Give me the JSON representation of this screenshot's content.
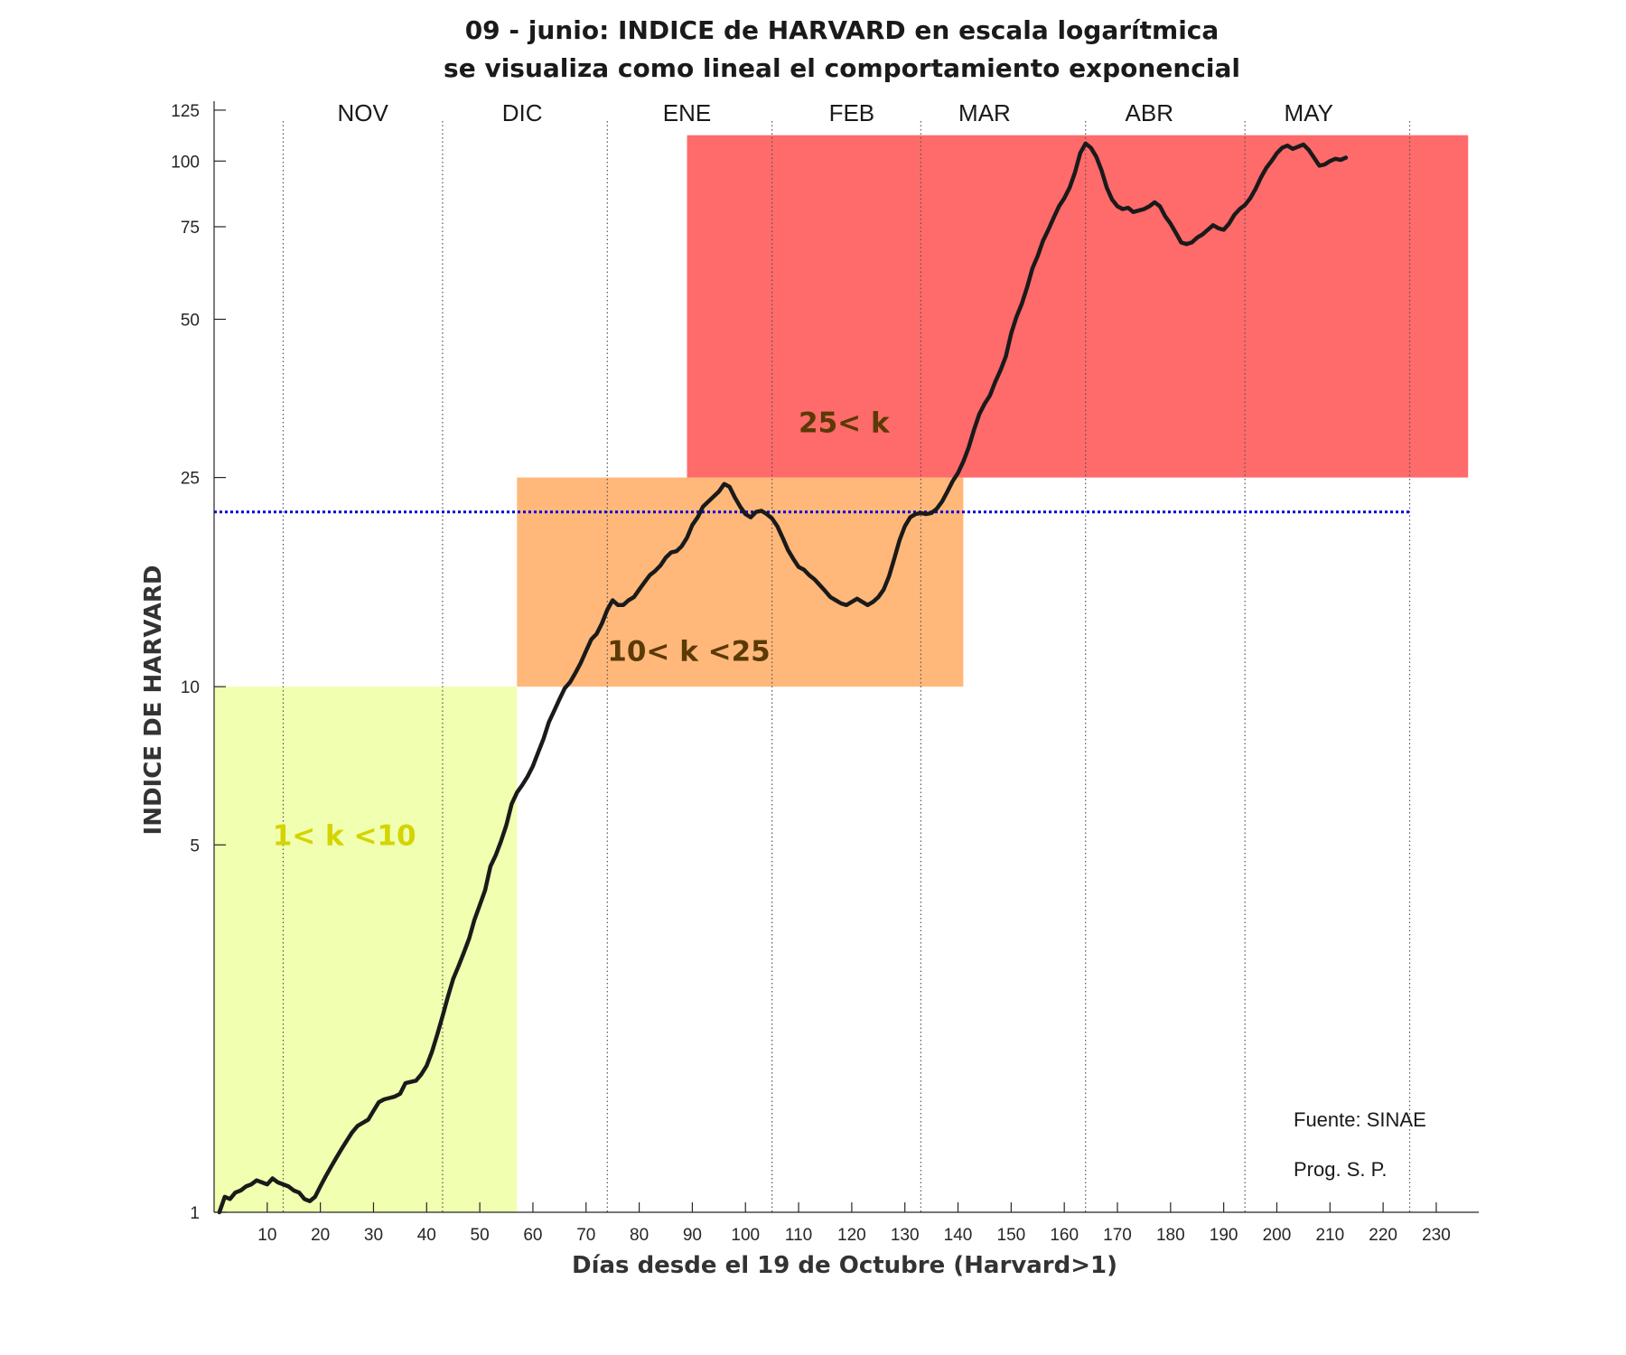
{
  "chart_data": {
    "type": "line",
    "title": "09 - junio:  INDICE de HARVARD  en escala logarítmica",
    "subtitle": "se visualiza como lineal el comportamiento exponencial",
    "xlabel": "Días desde el 19 de Octubre (Harvard>1)",
    "ylabel": "INDICE DE HARVARD",
    "yscale": "log",
    "xlim": [
      0,
      238
    ],
    "ylim": [
      1,
      130
    ],
    "x_ticks": [
      10,
      20,
      30,
      40,
      50,
      60,
      70,
      80,
      90,
      100,
      110,
      120,
      130,
      140,
      150,
      160,
      170,
      180,
      190,
      200,
      210,
      220,
      230
    ],
    "y_ticks": [
      1,
      5,
      10,
      25,
      50,
      75,
      100,
      125
    ],
    "y_tick_labels": [
      "1",
      "5",
      "10",
      "25",
      "50",
      "75",
      "100",
      "125"
    ],
    "grid": false,
    "month_boundaries": [
      13,
      43,
      74,
      105,
      133,
      164,
      194,
      225
    ],
    "months": [
      {
        "label": "NOV",
        "x": 28
      },
      {
        "label": "DIC",
        "x": 58
      },
      {
        "label": "ENE",
        "x": 89
      },
      {
        "label": "FEB",
        "x": 120
      },
      {
        "label": "MAR",
        "x": 145
      },
      {
        "label": "ABR",
        "x": 176
      },
      {
        "label": "MAY",
        "x": 206
      }
    ],
    "zones": [
      {
        "label": "1< k <10",
        "x": [
          0,
          57
        ],
        "y": [
          1,
          10
        ],
        "color": "#f0ffb0",
        "label_color": "#d4d400",
        "label_x": 11,
        "label_y": 5
      },
      {
        "label": "10< k <25",
        "x": [
          57,
          141
        ],
        "y": [
          10,
          25
        ],
        "color": "#ffb87a",
        "label_color": "#5a3a05",
        "label_x": 74,
        "label_y": 11.2
      },
      {
        "label": "25< k",
        "x": [
          89,
          236
        ],
        "y": [
          25,
          112
        ],
        "color": "#ff6a6a",
        "label_color": "#5a3a05",
        "label_x": 110,
        "label_y": 30.5
      }
    ],
    "reference_line": {
      "y": 21.5,
      "x": [
        0,
        225
      ],
      "color": "#0000dd",
      "style": "dotted"
    },
    "series": [
      {
        "color": "#1a1a1a",
        "points": [
          [
            1,
            1.0
          ],
          [
            2,
            1.07
          ],
          [
            3,
            1.06
          ],
          [
            4,
            1.09
          ],
          [
            5,
            1.1
          ],
          [
            6,
            1.12
          ],
          [
            7,
            1.13
          ],
          [
            8,
            1.15
          ],
          [
            9,
            1.14
          ],
          [
            10,
            1.13
          ],
          [
            11,
            1.16
          ],
          [
            12,
            1.14
          ],
          [
            13,
            1.13
          ],
          [
            14,
            1.12
          ],
          [
            15,
            1.1
          ],
          [
            16,
            1.09
          ],
          [
            17,
            1.06
          ],
          [
            18,
            1.05
          ],
          [
            19,
            1.07
          ],
          [
            20,
            1.12
          ],
          [
            21,
            1.17
          ],
          [
            22,
            1.22
          ],
          [
            23,
            1.27
          ],
          [
            24,
            1.32
          ],
          [
            25,
            1.37
          ],
          [
            26,
            1.42
          ],
          [
            27,
            1.46
          ],
          [
            28,
            1.48
          ],
          [
            29,
            1.5
          ],
          [
            30,
            1.56
          ],
          [
            31,
            1.62
          ],
          [
            32,
            1.64
          ],
          [
            33,
            1.65
          ],
          [
            34,
            1.66
          ],
          [
            35,
            1.68
          ],
          [
            36,
            1.76
          ],
          [
            37,
            1.77
          ],
          [
            38,
            1.78
          ],
          [
            39,
            1.83
          ],
          [
            40,
            1.9
          ],
          [
            41,
            2.02
          ],
          [
            42,
            2.18
          ],
          [
            43,
            2.36
          ],
          [
            44,
            2.57
          ],
          [
            45,
            2.78
          ],
          [
            46,
            2.94
          ],
          [
            47,
            3.12
          ],
          [
            48,
            3.32
          ],
          [
            49,
            3.6
          ],
          [
            50,
            3.84
          ],
          [
            51,
            4.1
          ],
          [
            52,
            4.55
          ],
          [
            53,
            4.78
          ],
          [
            54,
            5.08
          ],
          [
            55,
            5.45
          ],
          [
            56,
            5.98
          ],
          [
            57,
            6.29
          ],
          [
            58,
            6.5
          ],
          [
            59,
            6.75
          ],
          [
            60,
            7.06
          ],
          [
            61,
            7.5
          ],
          [
            62,
            7.96
          ],
          [
            63,
            8.56
          ],
          [
            64,
            9.0
          ],
          [
            65,
            9.47
          ],
          [
            66,
            9.93
          ],
          [
            67,
            10.2
          ],
          [
            68,
            10.62
          ],
          [
            69,
            11.1
          ],
          [
            70,
            11.7
          ],
          [
            71,
            12.3
          ],
          [
            72,
            12.6
          ],
          [
            73,
            13.2
          ],
          [
            74,
            14.0
          ],
          [
            75,
            14.6
          ],
          [
            76,
            14.3
          ],
          [
            77,
            14.3
          ],
          [
            78,
            14.6
          ],
          [
            79,
            14.8
          ],
          [
            80,
            15.3
          ],
          [
            81,
            15.8
          ],
          [
            82,
            16.3
          ],
          [
            83,
            16.6
          ],
          [
            84,
            17.0
          ],
          [
            85,
            17.6
          ],
          [
            86,
            18.0
          ],
          [
            87,
            18.1
          ],
          [
            88,
            18.5
          ],
          [
            89,
            19.2
          ],
          [
            90,
            20.3
          ],
          [
            91,
            21.0
          ],
          [
            92,
            22.0
          ],
          [
            93,
            22.5
          ],
          [
            94,
            23.0
          ],
          [
            95,
            23.5
          ],
          [
            96,
            24.3
          ],
          [
            97,
            24.0
          ],
          [
            98,
            22.9
          ],
          [
            99,
            22.0
          ],
          [
            100,
            21.3
          ],
          [
            101,
            21.0
          ],
          [
            102,
            21.5
          ],
          [
            103,
            21.6
          ],
          [
            104,
            21.3
          ],
          [
            105,
            20.9
          ],
          [
            106,
            20.2
          ],
          [
            107,
            19.2
          ],
          [
            108,
            18.2
          ],
          [
            109,
            17.5
          ],
          [
            110,
            16.9
          ],
          [
            111,
            16.7
          ],
          [
            112,
            16.3
          ],
          [
            113,
            16.0
          ],
          [
            114,
            15.6
          ],
          [
            115,
            15.2
          ],
          [
            116,
            14.8
          ],
          [
            117,
            14.6
          ],
          [
            118,
            14.4
          ],
          [
            119,
            14.3
          ],
          [
            120,
            14.5
          ],
          [
            121,
            14.7
          ],
          [
            122,
            14.5
          ],
          [
            123,
            14.3
          ],
          [
            124,
            14.5
          ],
          [
            125,
            14.8
          ],
          [
            126,
            15.3
          ],
          [
            127,
            16.2
          ],
          [
            128,
            17.5
          ],
          [
            129,
            19.0
          ],
          [
            130,
            20.2
          ],
          [
            131,
            21.0
          ],
          [
            132,
            21.3
          ],
          [
            133,
            21.4
          ],
          [
            134,
            21.3
          ],
          [
            135,
            21.4
          ],
          [
            136,
            21.8
          ],
          [
            137,
            22.5
          ],
          [
            138,
            23.5
          ],
          [
            139,
            24.6
          ],
          [
            140,
            25.5
          ],
          [
            141,
            26.8
          ],
          [
            142,
            28.5
          ],
          [
            143,
            30.8
          ],
          [
            144,
            33.0
          ],
          [
            145,
            34.5
          ],
          [
            146,
            35.8
          ],
          [
            147,
            38.0
          ],
          [
            148,
            40.0
          ],
          [
            149,
            42.5
          ],
          [
            150,
            47.0
          ],
          [
            151,
            50.5
          ],
          [
            152,
            53.5
          ],
          [
            153,
            57.5
          ],
          [
            154,
            62.5
          ],
          [
            155,
            66.0
          ],
          [
            156,
            70.5
          ],
          [
            157,
            74.0
          ],
          [
            158,
            78.0
          ],
          [
            159,
            82.0
          ],
          [
            160,
            85.0
          ],
          [
            161,
            89.0
          ],
          [
            162,
            95.0
          ],
          [
            163,
            103.5
          ],
          [
            164,
            108.0
          ],
          [
            165,
            106.0
          ],
          [
            166,
            102.0
          ],
          [
            167,
            96.0
          ],
          [
            168,
            89.0
          ],
          [
            169,
            84.5
          ],
          [
            170,
            82.0
          ],
          [
            171,
            81.0
          ],
          [
            172,
            81.5
          ],
          [
            173,
            80.0
          ],
          [
            174,
            80.5
          ],
          [
            175,
            81.0
          ],
          [
            176,
            82.0
          ],
          [
            177,
            83.5
          ],
          [
            178,
            82.0
          ],
          [
            179,
            78.5
          ],
          [
            180,
            76.0
          ],
          [
            181,
            73.0
          ],
          [
            182,
            70.0
          ],
          [
            183,
            69.5
          ],
          [
            184,
            70.0
          ],
          [
            185,
            71.5
          ],
          [
            186,
            72.5
          ],
          [
            187,
            74.0
          ],
          [
            188,
            75.5
          ],
          [
            189,
            74.5
          ],
          [
            190,
            74.0
          ],
          [
            191,
            76.0
          ],
          [
            192,
            79.0
          ],
          [
            193,
            81.0
          ],
          [
            194,
            82.5
          ],
          [
            195,
            85.0
          ],
          [
            196,
            88.5
          ],
          [
            197,
            93.0
          ],
          [
            198,
            97.0
          ],
          [
            199,
            100.0
          ],
          [
            200,
            103.5
          ],
          [
            201,
            106.0
          ],
          [
            202,
            107.0
          ],
          [
            203,
            105.5
          ],
          [
            204,
            106.5
          ],
          [
            205,
            107.5
          ],
          [
            206,
            105.0
          ],
          [
            207,
            101.5
          ],
          [
            208,
            98.0
          ],
          [
            209,
            98.5
          ],
          [
            210,
            100.0
          ],
          [
            211,
            101.0
          ],
          [
            212,
            100.5
          ],
          [
            213,
            101.5
          ]
        ]
      }
    ],
    "annotations": [
      "Fuente: SINAE",
      "Prog. S. P."
    ]
  }
}
